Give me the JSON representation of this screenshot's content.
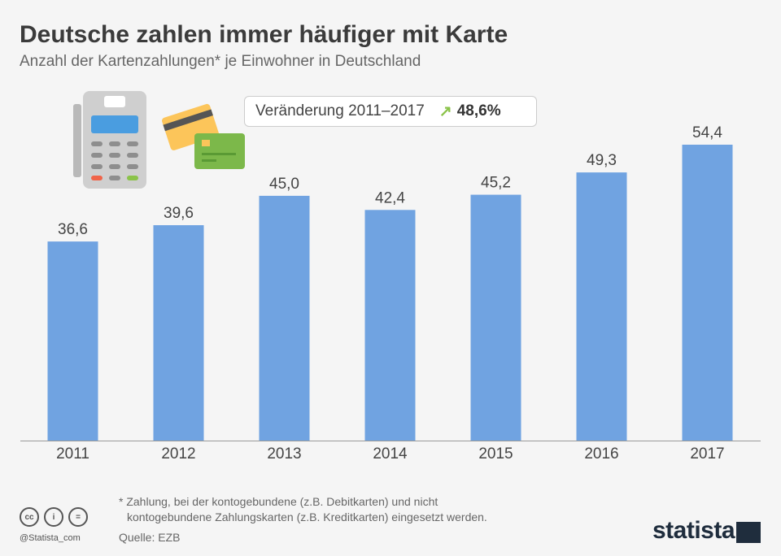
{
  "header": {
    "title": "Deutsche zahlen immer häufiger mit Karte",
    "subtitle": "Anzahl der Kartenzahlungen* je Einwohner in Deutschland"
  },
  "callout": {
    "label": "Veränderung 2011–2017",
    "arrow_icon": "arrow-up-right-icon",
    "value": "48,6%",
    "arrow_color": "#8bc34a"
  },
  "chart_data": {
    "type": "bar",
    "categories": [
      "2011",
      "2012",
      "2013",
      "2014",
      "2015",
      "2016",
      "2017"
    ],
    "values": [
      36.6,
      39.6,
      45.0,
      42.4,
      45.2,
      49.3,
      54.4
    ],
    "value_labels": [
      "36,6",
      "39,6",
      "45,0",
      "42,4",
      "45,2",
      "49,3",
      "54,4"
    ],
    "title": "Deutsche zahlen immer häufiger mit Karte",
    "xlabel": "",
    "ylabel": "",
    "ylim": [
      0,
      81
    ],
    "grid": false,
    "bar_color": "#70a3e1"
  },
  "footer": {
    "note_line1": "* Zahlung, bei der kontogebundene (z.B. Debitkarten) und nicht",
    "note_line2": "kontogebundene Zahlungskarten (z.B. Kreditkarten) eingesetzt werden.",
    "source": "Quelle: EZB",
    "handle": "@Statista_com",
    "logo": "statista",
    "license_icons": [
      "cc-icon",
      "attribution-icon",
      "no-derivatives-icon"
    ]
  }
}
